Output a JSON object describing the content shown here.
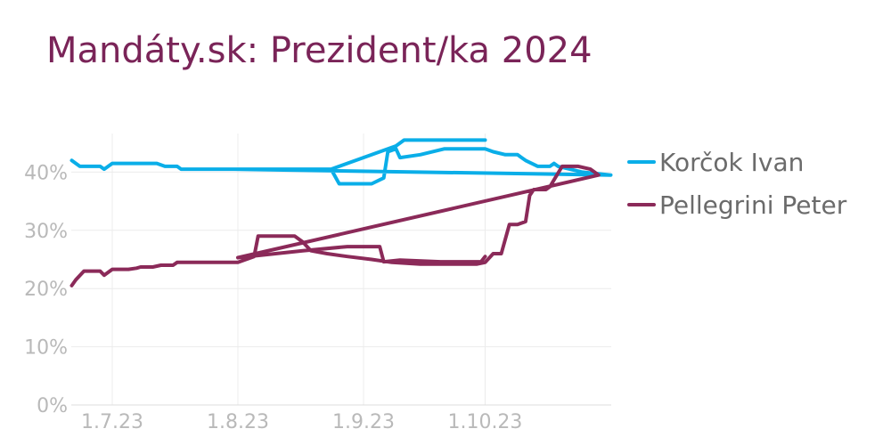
{
  "chart_data": {
    "type": "line",
    "title": "Mandáty.sk: Prezident/ka 2024",
    "xlabel": "",
    "ylabel": "",
    "ylim": [
      0,
      47
    ],
    "y_ticks": [
      0,
      10,
      20,
      30,
      40
    ],
    "y_tick_labels": [
      "0%",
      "10%",
      "20%",
      "30%",
      "40%"
    ],
    "x_tick_labels": [
      "1.7.23",
      "1.8.23",
      "1.9.23",
      "1.10.23"
    ],
    "grid": true,
    "legend_position": "right",
    "series": [
      {
        "name": "Korčok Ivan",
        "color": "#0aaee8",
        "points": [
          [
            "2023-06-21",
            42
          ],
          [
            "2023-06-23",
            41
          ],
          [
            "2023-06-26",
            41
          ],
          [
            "2023-06-28",
            41
          ],
          [
            "2023-06-29",
            40.5
          ],
          [
            "2023-07-01",
            41.5
          ],
          [
            "2023-07-04",
            41.5
          ],
          [
            "2023-07-08",
            41.5
          ],
          [
            "2023-07-12",
            41.5
          ],
          [
            "2023-07-14",
            41
          ],
          [
            "2023-07-17",
            41
          ],
          [
            "2023-07-18",
            40.5
          ],
          [
            "2023-07-25",
            40.5
          ],
          [
            "2023-07-31",
            40.5
          ],
          [
            "2023-08-01",
            40.5
          ],
          [
            "2023-08-10",
            40.5
          ],
          [
            "2023-08-20",
            40.5
          ],
          [
            "2023-08-24",
            40.5
          ],
          [
            "2023-08-26",
            38
          ],
          [
            "2023-08-28",
            38
          ],
          [
            "2023-09-03",
            38
          ],
          [
            "2023-09-06",
            39
          ],
          [
            "2023-09-07",
            43.5
          ],
          [
            "2023-09-09",
            44
          ],
          [
            "2023-09-10",
            42.5
          ],
          [
            "2023-09-15",
            43
          ],
          [
            "2023-09-21",
            44
          ],
          [
            "2023-09-28",
            44
          ],
          [
            "2023-10-01",
            44
          ],
          [
            "2023-10-03",
            43.5
          ],
          [
            "2023-10-06",
            43
          ],
          [
            "2023-10-09",
            43
          ],
          [
            "2023-10-10",
            42.5
          ],
          [
            "2023-10-11",
            42
          ],
          [
            "2023-10-14",
            41
          ],
          [
            "2023-10-17",
            41
          ],
          [
            "2023-10-18",
            41.5
          ],
          [
            "2023-10-19",
            41
          ],
          [
            "2023-10-25",
            40
          ],
          [
            "2023-11-01",
            39.5
          ],
          [
            "2023-07-31",
            40.5
          ],
          [
            "2023-08-24",
            40.5
          ],
          [
            "2023-09-09",
            44.5
          ],
          [
            "2023-09-11",
            45.5
          ],
          [
            "2023-09-18",
            45.5
          ],
          [
            "2023-09-25",
            45.5
          ],
          [
            "2023-10-01",
            45.5
          ]
        ]
      },
      {
        "name": "Pellegrini Peter",
        "color": "#8b2a59",
        "points": [
          [
            "2023-06-21",
            20.5
          ],
          [
            "2023-06-22",
            21.5
          ],
          [
            "2023-06-24",
            23
          ],
          [
            "2023-06-26",
            23
          ],
          [
            "2023-06-28",
            23
          ],
          [
            "2023-06-29",
            22.3
          ],
          [
            "2023-07-01",
            23.3
          ],
          [
            "2023-07-05",
            23.3
          ],
          [
            "2023-07-07",
            23.5
          ],
          [
            "2023-07-08",
            23.7
          ],
          [
            "2023-07-11",
            23.7
          ],
          [
            "2023-07-13",
            24
          ],
          [
            "2023-07-16",
            24
          ],
          [
            "2023-07-17",
            24.5
          ],
          [
            "2023-07-23",
            24.5
          ],
          [
            "2023-07-30",
            24.5
          ],
          [
            "2023-08-01",
            24.5
          ],
          [
            "2023-08-05",
            25.5
          ],
          [
            "2023-08-06",
            29
          ],
          [
            "2023-08-10",
            29
          ],
          [
            "2023-08-15",
            29
          ],
          [
            "2023-08-17",
            28
          ],
          [
            "2023-08-19",
            26.5
          ],
          [
            "2023-08-23",
            26
          ],
          [
            "2023-08-28",
            25.5
          ],
          [
            "2023-09-03",
            25
          ],
          [
            "2023-09-08",
            24.5
          ],
          [
            "2023-09-15",
            24.2
          ],
          [
            "2023-09-22",
            24.2
          ],
          [
            "2023-09-29",
            24.2
          ],
          [
            "2023-10-01",
            24.5
          ],
          [
            "2023-10-03",
            26
          ],
          [
            "2023-10-05",
            26
          ],
          [
            "2023-10-07",
            31
          ],
          [
            "2023-10-09",
            31
          ],
          [
            "2023-10-11",
            31.5
          ],
          [
            "2023-10-12",
            36
          ],
          [
            "2023-10-13",
            37
          ],
          [
            "2023-10-16",
            37
          ],
          [
            "2023-10-17",
            37.5
          ],
          [
            "2023-10-20",
            41
          ],
          [
            "2023-10-24",
            41
          ],
          [
            "2023-10-27",
            40.5
          ],
          [
            "2023-10-28",
            40
          ],
          [
            "2023-10-29",
            39.5
          ],
          [
            "2023-08-01",
            25.3
          ],
          [
            "2023-08-17",
            26.5
          ],
          [
            "2023-08-28",
            27.2
          ],
          [
            "2023-09-05",
            27.2
          ],
          [
            "2023-09-06",
            24.6
          ],
          [
            "2023-09-10",
            24.9
          ],
          [
            "2023-09-20",
            24.6
          ],
          [
            "2023-09-30",
            24.6
          ],
          [
            "2023-10-01",
            25.5
          ]
        ]
      }
    ]
  }
}
